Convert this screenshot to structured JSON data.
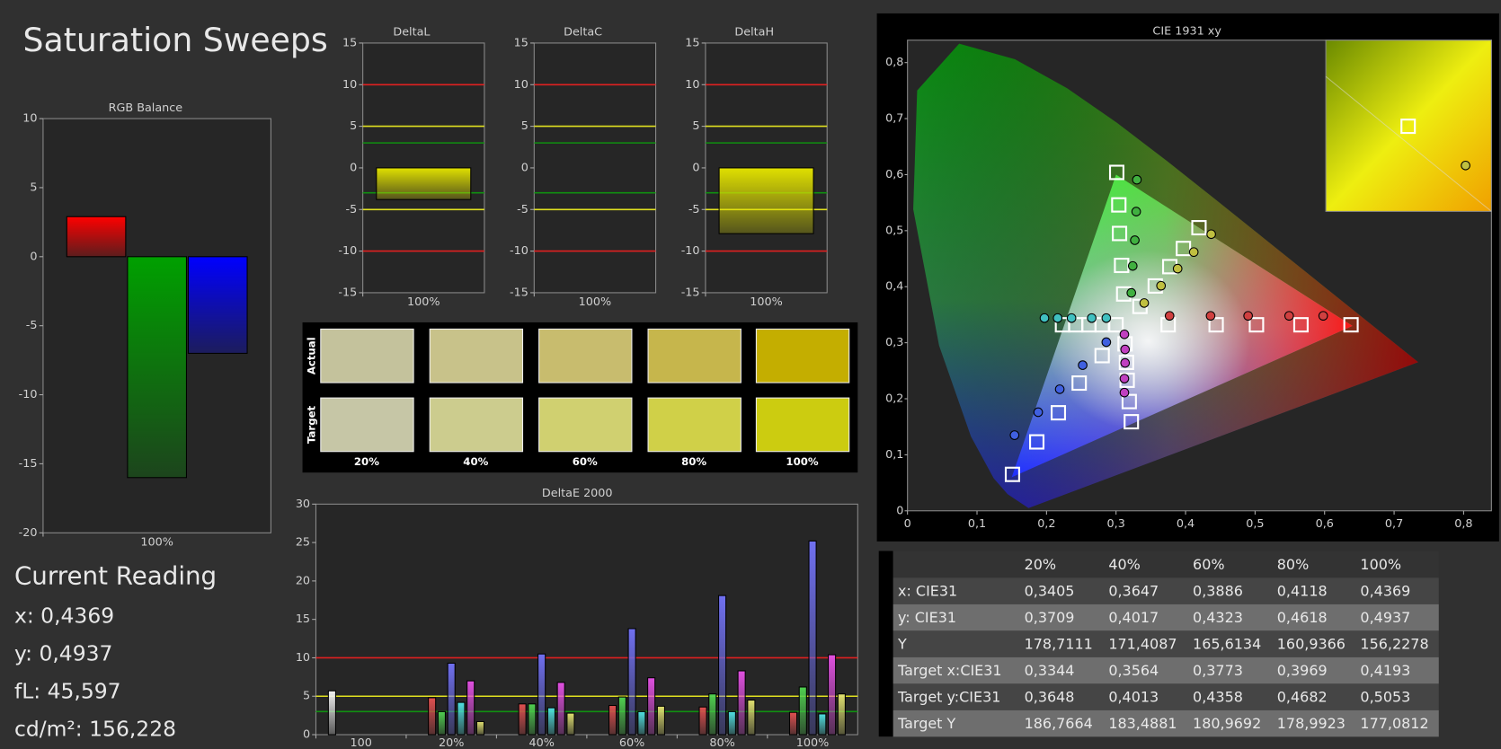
{
  "header": {
    "title": "Saturation Sweeps"
  },
  "chart_data": [
    {
      "type": "bar",
      "title": "RGB Balance",
      "categories": [
        "100%"
      ],
      "series": [
        {
          "color": "#ff0000",
          "values": [
            2.9
          ]
        },
        {
          "color": "#00a000",
          "values": [
            -16
          ]
        },
        {
          "color": "#0000ff",
          "values": [
            -7
          ]
        }
      ],
      "ylim": [
        -20,
        10
      ],
      "yticks": [
        -20,
        -15,
        -10,
        -5,
        0,
        5,
        10
      ]
    },
    {
      "type": "bar",
      "title": "DeltaL",
      "categories": [
        "100%"
      ],
      "values": [
        -3.8
      ],
      "color": "#e0e000",
      "ylim": [
        -15,
        15
      ],
      "yticks": [
        -15,
        -10,
        -5,
        0,
        5,
        10,
        15
      ],
      "reference_lines": [
        {
          "value": 10,
          "color": "#e02020"
        },
        {
          "value": -10,
          "color": "#e02020"
        },
        {
          "value": 5,
          "color": "#e0e020"
        },
        {
          "value": -5,
          "color": "#e0e020"
        },
        {
          "value": 3,
          "color": "#109010"
        },
        {
          "value": -3,
          "color": "#109010"
        }
      ]
    },
    {
      "type": "bar",
      "title": "DeltaC",
      "categories": [
        "100%"
      ],
      "values": [
        0
      ],
      "color": "#e0e000",
      "ylim": [
        -15,
        15
      ],
      "yticks": [
        -15,
        -10,
        -5,
        0,
        5,
        10,
        15
      ],
      "reference_lines": [
        {
          "value": 10,
          "color": "#e02020"
        },
        {
          "value": -10,
          "color": "#e02020"
        },
        {
          "value": 5,
          "color": "#e0e020"
        },
        {
          "value": -5,
          "color": "#e0e020"
        },
        {
          "value": 3,
          "color": "#109010"
        },
        {
          "value": -3,
          "color": "#109010"
        }
      ]
    },
    {
      "type": "bar",
      "title": "DeltaH",
      "categories": [
        "100%"
      ],
      "values": [
        -7.9
      ],
      "color": "#e0e000",
      "ylim": [
        -15,
        15
      ],
      "yticks": [
        -15,
        -10,
        -5,
        0,
        5,
        10,
        15
      ],
      "reference_lines": [
        {
          "value": 10,
          "color": "#e02020"
        },
        {
          "value": -10,
          "color": "#e02020"
        },
        {
          "value": 5,
          "color": "#e0e020"
        },
        {
          "value": -5,
          "color": "#e0e020"
        },
        {
          "value": 3,
          "color": "#109010"
        },
        {
          "value": -3,
          "color": "#109010"
        }
      ]
    },
    {
      "type": "bar",
      "title": "DeltaE 2000",
      "categories": [
        "100",
        "20%",
        "40%",
        "60%",
        "80%",
        "100%"
      ],
      "series": [
        {
          "color": "#f0f0f0",
          "values": [
            5.7,
            null,
            null,
            null,
            null,
            null
          ]
        },
        {
          "color": "#e05050",
          "values": [
            null,
            4.8,
            4.0,
            3.8,
            3.6,
            2.9
          ]
        },
        {
          "color": "#50d050",
          "values": [
            null,
            3.0,
            4.0,
            4.9,
            5.3,
            6.2
          ]
        },
        {
          "color": "#7070f0",
          "values": [
            null,
            9.3,
            10.5,
            13.8,
            18.1,
            25.2
          ]
        },
        {
          "color": "#50e0e0",
          "values": [
            null,
            4.2,
            3.5,
            3.0,
            3.0,
            2.7
          ]
        },
        {
          "color": "#e050e0",
          "values": [
            null,
            7.0,
            6.8,
            7.4,
            8.3,
            10.4
          ]
        },
        {
          "color": "#e0e070",
          "values": [
            null,
            1.7,
            2.8,
            3.7,
            4.5,
            5.3
          ]
        }
      ],
      "ylim": [
        0,
        30
      ],
      "yticks": [
        0,
        5,
        10,
        15,
        20,
        25,
        30
      ],
      "reference_lines": [
        {
          "value": 10,
          "color": "#e02020"
        },
        {
          "value": 5,
          "color": "#e0e020"
        },
        {
          "value": 3,
          "color": "#109010"
        }
      ]
    },
    {
      "type": "scatter",
      "title": "CIE 1931 xy",
      "xlim": [
        0,
        0.84
      ],
      "ylim": [
        0,
        0.84
      ],
      "xticks": [
        0,
        {
          "value": 0.1,
          "label": "0,1"
        },
        {
          "value": 0.2,
          "label": "0,2"
        },
        {
          "value": 0.3,
          "label": "0,3"
        },
        {
          "value": 0.4,
          "label": "0,4"
        },
        {
          "value": 0.5,
          "label": "0,5"
        },
        {
          "value": 0.6,
          "label": "0,6"
        },
        {
          "value": 0.7,
          "label": "0,7"
        },
        {
          "value": 0.8,
          "label": "0,8"
        }
      ],
      "yticks": [
        0,
        {
          "value": 0.1,
          "label": "0,1"
        },
        {
          "value": 0.2,
          "label": "0,2"
        },
        {
          "value": 0.3,
          "label": "0,3"
        },
        {
          "value": 0.4,
          "label": "0,4"
        },
        {
          "value": 0.5,
          "label": "0,5"
        },
        {
          "value": 0.6,
          "label": "0,6"
        },
        {
          "value": 0.7,
          "label": "0,7"
        },
        {
          "value": 0.8,
          "label": "0,8"
        }
      ],
      "series": [
        {
          "marker": "square",
          "color": "#ffffff",
          "x": [
            0.375,
            0.444,
            0.502,
            0.566,
            0.638
          ],
          "y": [
            0.332,
            0.332,
            0.332,
            0.332,
            0.332
          ]
        },
        {
          "marker": "square",
          "color": "#ffffff",
          "x": [
            0.311,
            0.308,
            0.305,
            0.304,
            0.301
          ],
          "y": [
            0.387,
            0.438,
            0.495,
            0.546,
            0.604
          ]
        },
        {
          "marker": "square",
          "color": "#ffffff",
          "x": [
            0.28,
            0.247,
            0.217,
            0.186,
            0.151
          ],
          "y": [
            0.277,
            0.228,
            0.175,
            0.123,
            0.065
          ]
        },
        {
          "marker": "square",
          "color": "#ffffff",
          "x": [
            0.3,
            0.28,
            0.261,
            0.242,
            0.223
          ],
          "y": [
            0.332,
            0.332,
            0.332,
            0.332,
            0.332
          ]
        },
        {
          "marker": "square",
          "color": "#ffffff",
          "x": [
            0.313,
            0.315,
            0.316,
            0.319,
            0.322
          ],
          "y": [
            0.298,
            0.265,
            0.233,
            0.195,
            0.159
          ]
        },
        {
          "marker": "square",
          "color": "#ffffff",
          "x": [
            0.3344,
            0.3564,
            0.3773,
            0.3969,
            0.4193
          ],
          "y": [
            0.3648,
            0.4013,
            0.4358,
            0.4682,
            0.5053
          ]
        },
        {
          "marker": "circle",
          "color": "#d04040",
          "x": [
            0.377,
            0.436,
            0.49,
            0.549,
            0.598
          ],
          "y": [
            0.348,
            0.348,
            0.348,
            0.348,
            0.348
          ]
        },
        {
          "marker": "circle",
          "color": "#40b040",
          "x": [
            0.322,
            0.324,
            0.327,
            0.329,
            0.33
          ],
          "y": [
            0.389,
            0.437,
            0.483,
            0.534,
            0.591
          ]
        },
        {
          "marker": "circle",
          "color": "#4060e0",
          "x": [
            0.286,
            0.252,
            0.219,
            0.188,
            0.154
          ],
          "y": [
            0.301,
            0.26,
            0.217,
            0.176,
            0.135
          ]
        },
        {
          "marker": "circle",
          "color": "#40c0c0",
          "x": [
            0.286,
            0.265,
            0.236,
            0.216,
            0.197
          ],
          "y": [
            0.344,
            0.344,
            0.344,
            0.344,
            0.344
          ]
        },
        {
          "marker": "circle",
          "color": "#c040c0",
          "x": [
            0.312,
            0.313,
            0.313,
            0.312,
            0.312
          ],
          "y": [
            0.315,
            0.288,
            0.264,
            0.236,
            0.211
          ]
        },
        {
          "marker": "circle",
          "color": "#c0c040",
          "x": [
            0.3405,
            0.3647,
            0.3886,
            0.4118,
            0.4369
          ],
          "y": [
            0.3709,
            0.4017,
            0.4323,
            0.4618,
            0.4937
          ]
        }
      ]
    }
  ],
  "swatches": {
    "row_labels": [
      "Actual",
      "Target"
    ],
    "categories": [
      "20%",
      "40%",
      "60%",
      "80%",
      "100%"
    ],
    "actual": [
      "#c4c29c",
      "#c8c28a",
      "#c8bc6e",
      "#c6b64c",
      "#c4ae00"
    ],
    "target": [
      "#c6c6a6",
      "#cccc8e",
      "#d0d070",
      "#d0d048",
      "#cccc10"
    ]
  },
  "reading": {
    "title": "Current Reading",
    "lines": [
      "x: 0,4369",
      "y: 0,4937",
      "fL: 45,597",
      "cd/m²: 156,228"
    ]
  },
  "table": {
    "header": [
      "20%",
      "40%",
      "60%",
      "80%",
      "100%"
    ],
    "rows": [
      [
        "x: CIE31",
        "0,3405",
        "0,3647",
        "0,3886",
        "0,4118",
        "0,4369"
      ],
      [
        "y: CIE31",
        "0,3709",
        "0,4017",
        "0,4323",
        "0,4618",
        "0,4937"
      ],
      [
        "Y",
        "178,7111",
        "171,4087",
        "165,6134",
        "160,9366",
        "156,2278"
      ],
      [
        "Target x:CIE31",
        "0,3344",
        "0,3564",
        "0,3773",
        "0,3969",
        "0,4193"
      ],
      [
        "Target y:CIE31",
        "0,3648",
        "0,4013",
        "0,4358",
        "0,4682",
        "0,5053"
      ],
      [
        "Target Y",
        "186,7664",
        "183,4881",
        "180,9692",
        "178,9923",
        "177,0812"
      ]
    ]
  }
}
